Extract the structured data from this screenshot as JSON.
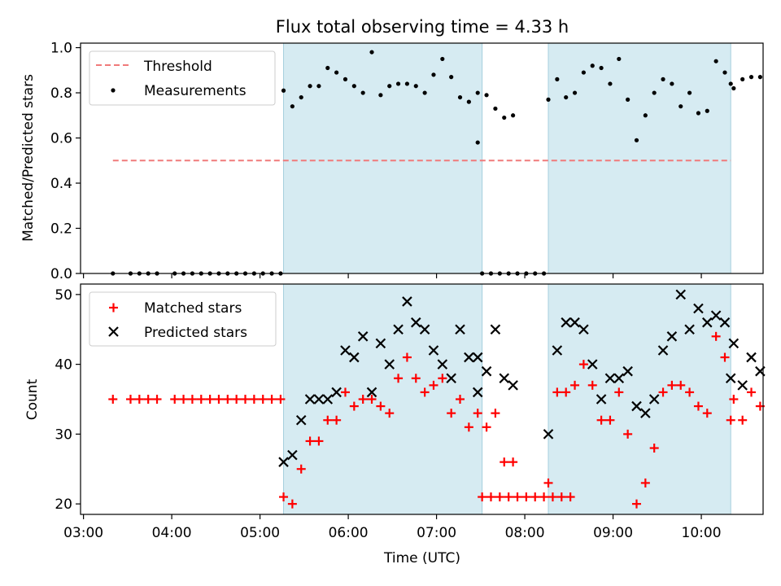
{
  "chart_data": [
    {
      "type": "scatter",
      "title": "Flux total observing time = 4.33 h",
      "ylabel": "Matched/Predicted stars",
      "xlim": [
        "02:58",
        "10:42"
      ],
      "ylim": [
        0.0,
        1.02
      ],
      "yticks": [
        "0.0",
        "0.2",
        "0.4",
        "0.6",
        "0.8",
        "1.0"
      ],
      "shaded_intervals": [
        [
          "05:16",
          "07:31"
        ],
        [
          "08:16",
          "10:20"
        ]
      ],
      "legend": {
        "position": "top-left",
        "threshold_label": "Threshold",
        "measurements_label": "Measurements"
      },
      "threshold": {
        "value": 0.5,
        "x_start": "03:20",
        "x_end": "10:20",
        "color": "#f07a7a"
      },
      "series": [
        {
          "name": "Measurements",
          "color": "#000000",
          "points": [
            [
              "03:20",
              0
            ],
            [
              "03:32",
              0
            ],
            [
              "03:38",
              0
            ],
            [
              "03:44",
              0
            ],
            [
              "03:50",
              0
            ],
            [
              "04:02",
              0
            ],
            [
              "04:08",
              0
            ],
            [
              "04:14",
              0
            ],
            [
              "04:20",
              0
            ],
            [
              "04:26",
              0
            ],
            [
              "04:32",
              0
            ],
            [
              "04:38",
              0
            ],
            [
              "04:44",
              0
            ],
            [
              "04:50",
              0
            ],
            [
              "04:56",
              0
            ],
            [
              "05:02",
              0
            ],
            [
              "05:08",
              0
            ],
            [
              "05:14",
              0
            ],
            [
              "05:16",
              0.81
            ],
            [
              "05:22",
              0.74
            ],
            [
              "05:28",
              0.78
            ],
            [
              "05:34",
              0.83
            ],
            [
              "05:40",
              0.83
            ],
            [
              "05:46",
              0.91
            ],
            [
              "05:52",
              0.89
            ],
            [
              "05:58",
              0.86
            ],
            [
              "06:04",
              0.83
            ],
            [
              "06:10",
              0.8
            ],
            [
              "06:16",
              0.98
            ],
            [
              "06:22",
              0.79
            ],
            [
              "06:28",
              0.83
            ],
            [
              "06:34",
              0.84
            ],
            [
              "06:40",
              0.84
            ],
            [
              "06:46",
              0.83
            ],
            [
              "06:52",
              0.8
            ],
            [
              "06:58",
              0.88
            ],
            [
              "07:04",
              0.95
            ],
            [
              "07:10",
              0.87
            ],
            [
              "07:16",
              0.78
            ],
            [
              "07:22",
              0.76
            ],
            [
              "07:28",
              0.8
            ],
            [
              "07:34",
              0.79
            ],
            [
              "07:40",
              0.73
            ],
            [
              "07:46",
              0.69
            ],
            [
              "07:52",
              0.7
            ],
            [
              "07:28",
              0.58
            ],
            [
              "07:31",
              0
            ],
            [
              "07:37",
              0
            ],
            [
              "07:43",
              0
            ],
            [
              "07:49",
              0
            ],
            [
              "07:55",
              0
            ],
            [
              "08:01",
              0
            ],
            [
              "08:07",
              0
            ],
            [
              "08:13",
              0
            ],
            [
              "08:16",
              0.77
            ],
            [
              "08:22",
              0.86
            ],
            [
              "08:28",
              0.78
            ],
            [
              "08:34",
              0.8
            ],
            [
              "08:40",
              0.89
            ],
            [
              "08:46",
              0.92
            ],
            [
              "08:52",
              0.91
            ],
            [
              "08:58",
              0.84
            ],
            [
              "09:04",
              0.95
            ],
            [
              "09:10",
              0.77
            ],
            [
              "09:16",
              0.59
            ],
            [
              "09:22",
              0.7
            ],
            [
              "09:28",
              0.8
            ],
            [
              "09:34",
              0.86
            ],
            [
              "09:40",
              0.84
            ],
            [
              "09:46",
              0.74
            ],
            [
              "09:52",
              0.8
            ],
            [
              "09:58",
              0.71
            ],
            [
              "10:04",
              0.72
            ],
            [
              "10:10",
              0.94
            ],
            [
              "10:16",
              0.89
            ],
            [
              "10:22",
              0.82
            ],
            [
              "10:28",
              0.86
            ],
            [
              "10:34",
              0.87
            ],
            [
              "10:40",
              0.87
            ],
            [
              "10:20",
              0.84
            ]
          ]
        }
      ]
    },
    {
      "type": "scatter",
      "xlabel": "Time (UTC)",
      "ylabel": "Count",
      "xlim": [
        "02:58",
        "10:42"
      ],
      "ylim": [
        18.5,
        51.5
      ],
      "xticks": [
        "03:00",
        "04:00",
        "05:00",
        "06:00",
        "07:00",
        "08:00",
        "09:00",
        "10:00"
      ],
      "yticks": [
        "20",
        "30",
        "40",
        "50"
      ],
      "shaded_intervals": [
        [
          "05:16",
          "07:31"
        ],
        [
          "08:16",
          "10:20"
        ]
      ],
      "legend": {
        "position": "top-left",
        "matched_label": "Matched stars",
        "predicted_label": "Predicted stars"
      },
      "series": [
        {
          "name": "Matched stars",
          "marker": "plus",
          "color": "#ff0000",
          "points": [
            [
              "03:20",
              35
            ],
            [
              "03:32",
              35
            ],
            [
              "03:38",
              35
            ],
            [
              "03:44",
              35
            ],
            [
              "03:50",
              35
            ],
            [
              "04:02",
              35
            ],
            [
              "04:08",
              35
            ],
            [
              "04:14",
              35
            ],
            [
              "04:20",
              35
            ],
            [
              "04:26",
              35
            ],
            [
              "04:32",
              35
            ],
            [
              "04:38",
              35
            ],
            [
              "04:44",
              35
            ],
            [
              "04:50",
              35
            ],
            [
              "04:56",
              35
            ],
            [
              "05:02",
              35
            ],
            [
              "05:08",
              35
            ],
            [
              "05:14",
              35
            ],
            [
              "05:16",
              21
            ],
            [
              "05:22",
              20
            ],
            [
              "05:28",
              25
            ],
            [
              "05:34",
              29
            ],
            [
              "05:40",
              29
            ],
            [
              "05:46",
              32
            ],
            [
              "05:52",
              32
            ],
            [
              "05:58",
              36
            ],
            [
              "06:04",
              34
            ],
            [
              "06:10",
              35
            ],
            [
              "06:16",
              35
            ],
            [
              "06:22",
              34
            ],
            [
              "06:28",
              33
            ],
            [
              "06:34",
              38
            ],
            [
              "06:40",
              41
            ],
            [
              "06:46",
              38
            ],
            [
              "06:52",
              36
            ],
            [
              "06:58",
              37
            ],
            [
              "07:04",
              38
            ],
            [
              "07:10",
              33
            ],
            [
              "07:16",
              35
            ],
            [
              "07:22",
              31
            ],
            [
              "07:28",
              33
            ],
            [
              "07:34",
              31
            ],
            [
              "07:40",
              33
            ],
            [
              "07:46",
              26
            ],
            [
              "07:52",
              26
            ],
            [
              "07:31",
              21
            ],
            [
              "07:37",
              21
            ],
            [
              "07:43",
              21
            ],
            [
              "07:49",
              21
            ],
            [
              "07:55",
              21
            ],
            [
              "08:01",
              21
            ],
            [
              "08:07",
              21
            ],
            [
              "08:13",
              21
            ],
            [
              "08:19",
              21
            ],
            [
              "08:25",
              21
            ],
            [
              "08:31",
              21
            ],
            [
              "08:16",
              23
            ],
            [
              "08:22",
              36
            ],
            [
              "08:28",
              36
            ],
            [
              "08:34",
              37
            ],
            [
              "08:40",
              40
            ],
            [
              "08:46",
              37
            ],
            [
              "08:52",
              32
            ],
            [
              "08:58",
              32
            ],
            [
              "09:04",
              36
            ],
            [
              "09:10",
              30
            ],
            [
              "09:16",
              20
            ],
            [
              "09:22",
              23
            ],
            [
              "09:28",
              28
            ],
            [
              "09:34",
              36
            ],
            [
              "09:40",
              37
            ],
            [
              "09:46",
              37
            ],
            [
              "09:52",
              36
            ],
            [
              "09:58",
              34
            ],
            [
              "10:04",
              33
            ],
            [
              "10:10",
              44
            ],
            [
              "10:16",
              41
            ],
            [
              "10:22",
              35
            ],
            [
              "10:28",
              32
            ],
            [
              "10:34",
              36
            ],
            [
              "10:40",
              34
            ],
            [
              "10:20",
              32
            ]
          ]
        },
        {
          "name": "Predicted stars",
          "marker": "x",
          "color": "#000000",
          "points": [
            [
              "05:16",
              26
            ],
            [
              "05:22",
              27
            ],
            [
              "05:28",
              32
            ],
            [
              "05:34",
              35
            ],
            [
              "05:40",
              35
            ],
            [
              "05:46",
              35
            ],
            [
              "05:52",
              36
            ],
            [
              "05:58",
              42
            ],
            [
              "06:04",
              41
            ],
            [
              "06:10",
              44
            ],
            [
              "06:16",
              36
            ],
            [
              "06:22",
              43
            ],
            [
              "06:28",
              40
            ],
            [
              "06:34",
              45
            ],
            [
              "06:40",
              49
            ],
            [
              "06:46",
              46
            ],
            [
              "06:52",
              45
            ],
            [
              "06:58",
              42
            ],
            [
              "07:04",
              40
            ],
            [
              "07:10",
              38
            ],
            [
              "07:16",
              45
            ],
            [
              "07:22",
              41
            ],
            [
              "07:28",
              41
            ],
            [
              "07:34",
              39
            ],
            [
              "07:40",
              45
            ],
            [
              "07:46",
              38
            ],
            [
              "07:52",
              37
            ],
            [
              "07:28",
              36
            ],
            [
              "08:16",
              30
            ],
            [
              "08:22",
              42
            ],
            [
              "08:28",
              46
            ],
            [
              "08:34",
              46
            ],
            [
              "08:40",
              45
            ],
            [
              "08:46",
              40
            ],
            [
              "08:52",
              35
            ],
            [
              "08:58",
              38
            ],
            [
              "09:04",
              38
            ],
            [
              "09:10",
              39
            ],
            [
              "09:16",
              34
            ],
            [
              "09:22",
              33
            ],
            [
              "09:28",
              35
            ],
            [
              "09:34",
              42
            ],
            [
              "09:40",
              44
            ],
            [
              "09:46",
              50
            ],
            [
              "09:52",
              45
            ],
            [
              "09:58",
              48
            ],
            [
              "10:04",
              46
            ],
            [
              "10:10",
              47
            ],
            [
              "10:16",
              46
            ],
            [
              "10:22",
              43
            ],
            [
              "10:28",
              37
            ],
            [
              "10:34",
              41
            ],
            [
              "10:40",
              39
            ],
            [
              "10:20",
              38
            ]
          ]
        }
      ]
    }
  ]
}
